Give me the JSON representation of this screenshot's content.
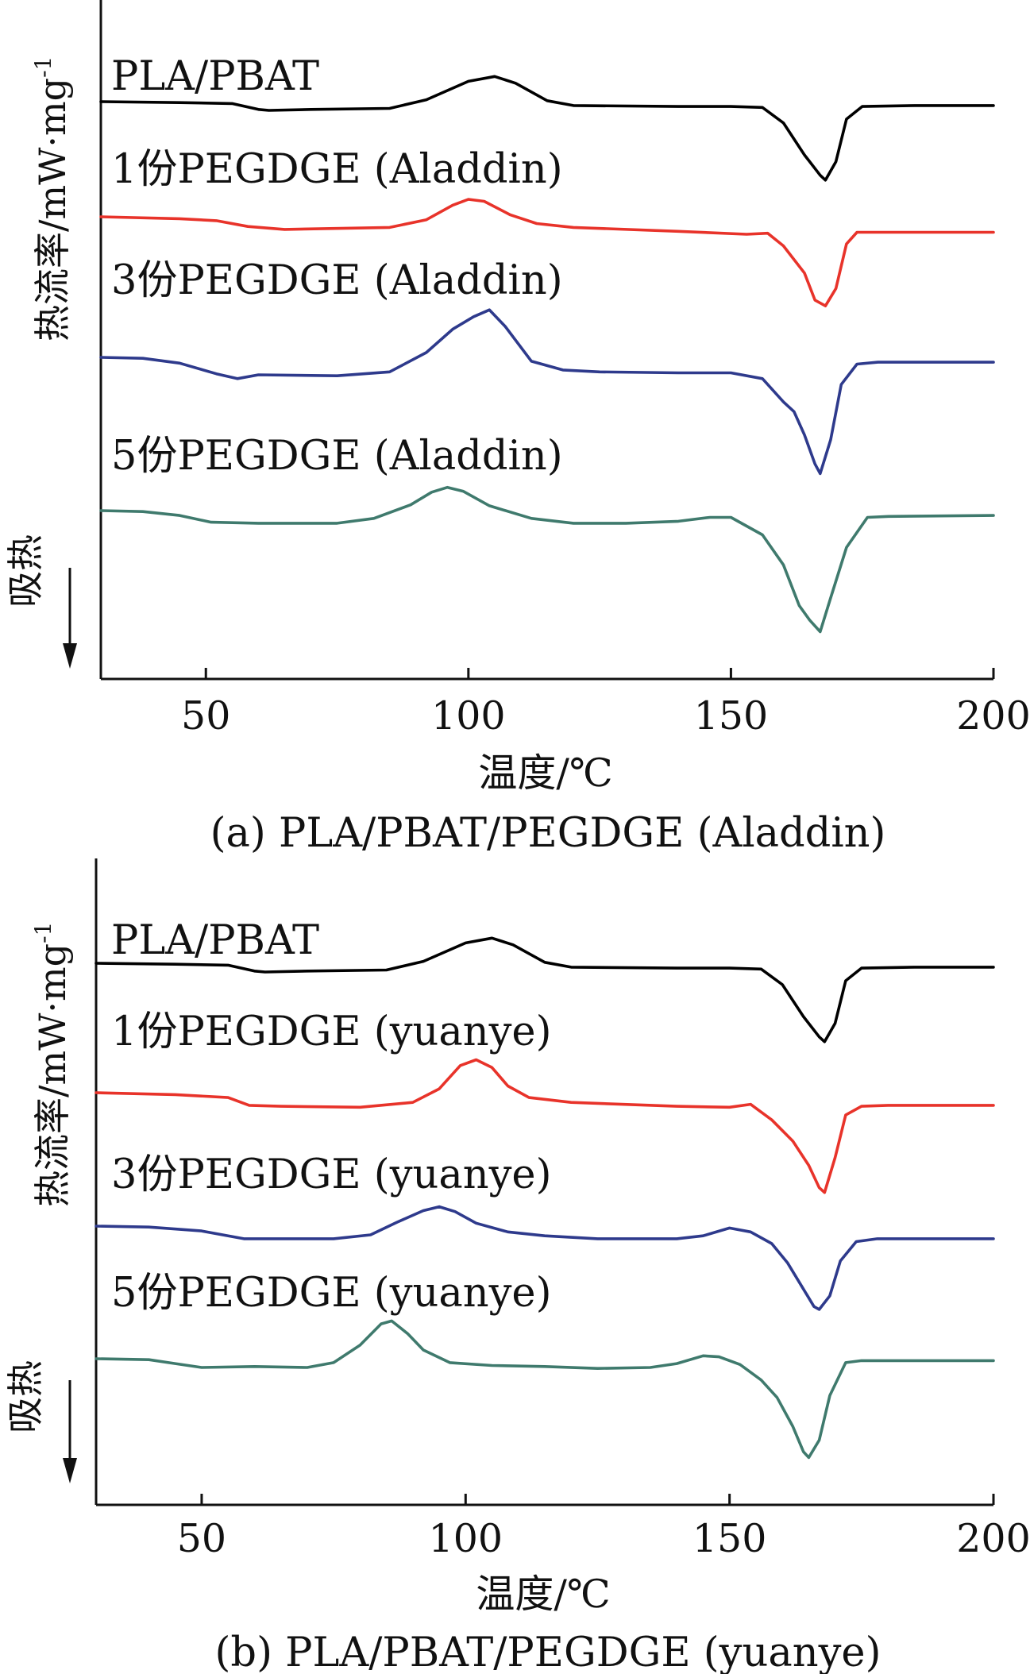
{
  "chart_data": [
    {
      "type": "line",
      "caption": "(a) PLA/PBAT/PEGDGE (Aladdin)",
      "xlabel": "温度/℃",
      "ylabel": "热流率/mW·mg⁻¹",
      "ylabel_superscript": "-1",
      "endo_label": "吸热",
      "xlim": [
        30,
        200
      ],
      "xticks": [
        50,
        100,
        150,
        200
      ],
      "series": [
        {
          "name": "PLA/PBAT",
          "color": "#000000",
          "points": [
            [
              30,
              0
            ],
            [
              45,
              -0.1
            ],
            [
              55,
              -0.2
            ],
            [
              60,
              -0.8
            ],
            [
              62,
              -0.9
            ],
            [
              70,
              -0.8
            ],
            [
              85,
              -0.7
            ],
            [
              92,
              0.2
            ],
            [
              100,
              2.1
            ],
            [
              105,
              2.6
            ],
            [
              109,
              1.9
            ],
            [
              115,
              0.1
            ],
            [
              120,
              -0.4
            ],
            [
              140,
              -0.5
            ],
            [
              150,
              -0.5
            ],
            [
              156,
              -0.6
            ],
            [
              160,
              -2.2
            ],
            [
              164,
              -5.5
            ],
            [
              167,
              -7.6
            ],
            [
              168,
              -8.1
            ],
            [
              170,
              -6.2
            ],
            [
              172,
              -1.8
            ],
            [
              175,
              -0.5
            ],
            [
              185,
              -0.4
            ],
            [
              200,
              -0.4
            ]
          ]
        },
        {
          "name": "1份PEGDGE (Aladdin)",
          "color": "#e8332a",
          "points": [
            [
              30,
              0
            ],
            [
              45,
              -0.2
            ],
            [
              52,
              -0.4
            ],
            [
              58,
              -1.0
            ],
            [
              65,
              -1.3
            ],
            [
              85,
              -1.1
            ],
            [
              92,
              -0.3
            ],
            [
              97,
              1.2
            ],
            [
              100,
              1.8
            ],
            [
              103,
              1.6
            ],
            [
              108,
              0.2
            ],
            [
              113,
              -0.7
            ],
            [
              120,
              -1.1
            ],
            [
              140,
              -1.5
            ],
            [
              153,
              -1.8
            ],
            [
              157,
              -1.7
            ],
            [
              160,
              -3.0
            ],
            [
              164,
              -5.8
            ],
            [
              166,
              -8.6
            ],
            [
              168,
              -9.2
            ],
            [
              170,
              -7.4
            ],
            [
              172,
              -2.8
            ],
            [
              174,
              -1.6
            ],
            [
              180,
              -1.6
            ],
            [
              200,
              -1.6
            ]
          ]
        },
        {
          "name": "3份PEGDGE (Aladdin)",
          "color": "#2e3a8c",
          "points": [
            [
              30,
              0
            ],
            [
              38,
              -0.1
            ],
            [
              45,
              -0.6
            ],
            [
              52,
              -1.7
            ],
            [
              56,
              -2.2
            ],
            [
              60,
              -1.8
            ],
            [
              75,
              -1.9
            ],
            [
              85,
              -1.5
            ],
            [
              92,
              0.5
            ],
            [
              97,
              2.9
            ],
            [
              101,
              4.2
            ],
            [
              104,
              4.9
            ],
            [
              107,
              3.2
            ],
            [
              112,
              -0.4
            ],
            [
              118,
              -1.3
            ],
            [
              125,
              -1.5
            ],
            [
              140,
              -1.6
            ],
            [
              150,
              -1.6
            ],
            [
              156,
              -2.2
            ],
            [
              160,
              -4.6
            ],
            [
              162,
              -5.6
            ],
            [
              164,
              -8.0
            ],
            [
              166,
              -11.0
            ],
            [
              167,
              -12.0
            ],
            [
              169,
              -8.5
            ],
            [
              171,
              -2.8
            ],
            [
              174,
              -0.7
            ],
            [
              178,
              -0.5
            ],
            [
              200,
              -0.5
            ]
          ]
        },
        {
          "name": "5份PEGDGE (Aladdin)",
          "color": "#3f7a6d",
          "points": [
            [
              30,
              0
            ],
            [
              38,
              -0.1
            ],
            [
              45,
              -0.5
            ],
            [
              51,
              -1.2
            ],
            [
              60,
              -1.3
            ],
            [
              75,
              -1.3
            ],
            [
              82,
              -0.8
            ],
            [
              89,
              0.6
            ],
            [
              93,
              1.9
            ],
            [
              96,
              2.4
            ],
            [
              99,
              2.0
            ],
            [
              104,
              0.5
            ],
            [
              112,
              -0.8
            ],
            [
              120,
              -1.3
            ],
            [
              130,
              -1.3
            ],
            [
              140,
              -1.1
            ],
            [
              146,
              -0.7
            ],
            [
              150,
              -0.7
            ],
            [
              156,
              -2.5
            ],
            [
              160,
              -5.6
            ],
            [
              163,
              -9.8
            ],
            [
              165,
              -11.3
            ],
            [
              167,
              -12.5
            ],
            [
              169,
              -9.0
            ],
            [
              172,
              -3.8
            ],
            [
              176,
              -0.7
            ],
            [
              180,
              -0.6
            ],
            [
              200,
              -0.5
            ]
          ]
        }
      ]
    },
    {
      "type": "line",
      "caption": "(b) PLA/PBAT/PEGDGE (yuanye)",
      "xlabel": "温度/℃",
      "ylabel": "热流率/mW·mg⁻¹",
      "ylabel_superscript": "-1",
      "endo_label": "吸热",
      "xlim": [
        30,
        200
      ],
      "xticks": [
        50,
        100,
        150,
        200
      ],
      "series": [
        {
          "name": "PLA/PBAT",
          "color": "#000000",
          "points": [
            [
              30,
              0
            ],
            [
              45,
              -0.1
            ],
            [
              55,
              -0.2
            ],
            [
              60,
              -0.8
            ],
            [
              62,
              -0.9
            ],
            [
              70,
              -0.8
            ],
            [
              85,
              -0.7
            ],
            [
              92,
              0.2
            ],
            [
              100,
              2.1
            ],
            [
              105,
              2.6
            ],
            [
              109,
              1.9
            ],
            [
              115,
              0.1
            ],
            [
              120,
              -0.4
            ],
            [
              140,
              -0.5
            ],
            [
              150,
              -0.5
            ],
            [
              156,
              -0.6
            ],
            [
              160,
              -2.2
            ],
            [
              164,
              -5.5
            ],
            [
              167,
              -7.6
            ],
            [
              168,
              -8.1
            ],
            [
              170,
              -6.2
            ],
            [
              172,
              -1.8
            ],
            [
              175,
              -0.5
            ],
            [
              185,
              -0.4
            ],
            [
              200,
              -0.4
            ]
          ]
        },
        {
          "name": "1份PEGDGE (yuanye)",
          "color": "#e8332a",
          "points": [
            [
              30,
              0
            ],
            [
              45,
              -0.2
            ],
            [
              55,
              -0.5
            ],
            [
              59,
              -1.3
            ],
            [
              65,
              -1.4
            ],
            [
              80,
              -1.5
            ],
            [
              90,
              -1.0
            ],
            [
              95,
              0.4
            ],
            [
              99,
              2.8
            ],
            [
              102,
              3.4
            ],
            [
              105,
              2.6
            ],
            [
              108,
              0.7
            ],
            [
              112,
              -0.5
            ],
            [
              120,
              -1.0
            ],
            [
              140,
              -1.4
            ],
            [
              150,
              -1.5
            ],
            [
              154,
              -1.2
            ],
            [
              158,
              -2.8
            ],
            [
              162,
              -5.0
            ],
            [
              165,
              -7.5
            ],
            [
              167,
              -9.8
            ],
            [
              168,
              -10.3
            ],
            [
              170,
              -6.7
            ],
            [
              172,
              -2.3
            ],
            [
              175,
              -1.4
            ],
            [
              180,
              -1.3
            ],
            [
              200,
              -1.3
            ]
          ]
        },
        {
          "name": "3份PEGDGE (yuanye)",
          "color": "#2e3a8c",
          "points": [
            [
              30,
              0
            ],
            [
              40,
              -0.1
            ],
            [
              50,
              -0.5
            ],
            [
              58,
              -1.3
            ],
            [
              65,
              -1.3
            ],
            [
              75,
              -1.3
            ],
            [
              82,
              -0.9
            ],
            [
              87,
              0.4
            ],
            [
              92,
              1.6
            ],
            [
              95,
              2.0
            ],
            [
              98,
              1.5
            ],
            [
              102,
              0.3
            ],
            [
              108,
              -0.6
            ],
            [
              115,
              -1.0
            ],
            [
              125,
              -1.3
            ],
            [
              140,
              -1.3
            ],
            [
              145,
              -1.0
            ],
            [
              150,
              -0.2
            ],
            [
              154,
              -0.6
            ],
            [
              158,
              -1.8
            ],
            [
              161,
              -3.8
            ],
            [
              164,
              -6.5
            ],
            [
              166,
              -8.3
            ],
            [
              167,
              -8.6
            ],
            [
              169,
              -7.2
            ],
            [
              171,
              -3.6
            ],
            [
              174,
              -1.6
            ],
            [
              178,
              -1.3
            ],
            [
              200,
              -1.3
            ]
          ]
        },
        {
          "name": "5份PEGDGE (yuanye)",
          "color": "#3f7a6d",
          "points": [
            [
              30,
              0
            ],
            [
              40,
              -0.1
            ],
            [
              45,
              -0.5
            ],
            [
              50,
              -0.9
            ],
            [
              60,
              -0.8
            ],
            [
              70,
              -0.9
            ],
            [
              75,
              -0.4
            ],
            [
              80,
              1.4
            ],
            [
              84,
              3.6
            ],
            [
              86,
              3.9
            ],
            [
              89,
              2.6
            ],
            [
              92,
              0.9
            ],
            [
              97,
              -0.4
            ],
            [
              105,
              -0.7
            ],
            [
              115,
              -0.8
            ],
            [
              125,
              -1.0
            ],
            [
              135,
              -0.9
            ],
            [
              140,
              -0.5
            ],
            [
              145,
              0.3
            ],
            [
              148,
              0.2
            ],
            [
              152,
              -0.6
            ],
            [
              156,
              -2.2
            ],
            [
              159,
              -4.0
            ],
            [
              162,
              -7.0
            ],
            [
              164,
              -9.6
            ],
            [
              165,
              -10.2
            ],
            [
              167,
              -8.4
            ],
            [
              169,
              -3.8
            ],
            [
              172,
              -0.4
            ],
            [
              175,
              -0.2
            ],
            [
              200,
              -0.2
            ]
          ]
        }
      ]
    }
  ]
}
